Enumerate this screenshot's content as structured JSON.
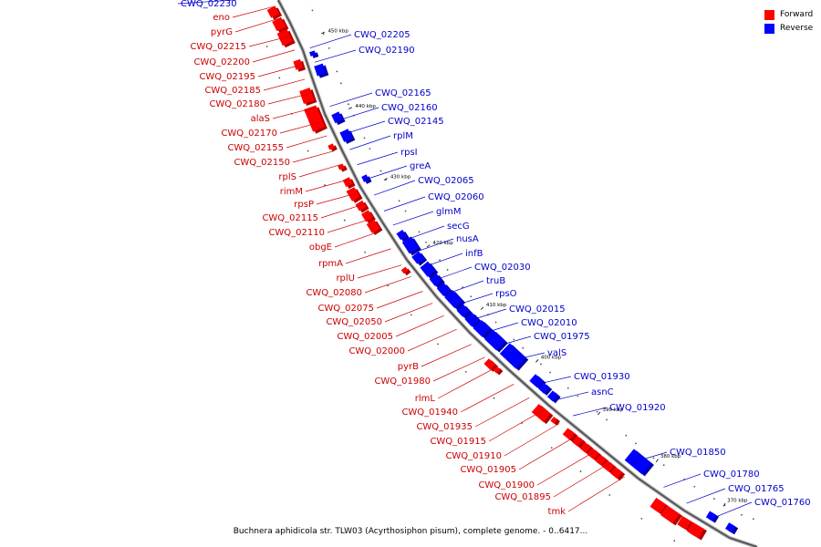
{
  "legend": {
    "forward_label": "Forward",
    "reverse_label": "Reverse",
    "forward_color": "#ff0000",
    "reverse_color": "#0000ff"
  },
  "caption": "Buchnera aphidicola str. TLW03 (Acyrthosiphon pisum), complete genome. - 0..6417...",
  "tick_labels": [
    "450 kbp",
    "440 kbp",
    "430 kbp",
    "420 kbp",
    "410 kbp",
    "400 kbp",
    "390 kbp",
    "380 kbp",
    "370 kbp"
  ],
  "forward_labels": [
    "eno",
    "pyrG",
    "CWQ_02215",
    "CWQ_02200",
    "CWQ_02195",
    "CWQ_02185",
    "CWQ_02180",
    "alaS",
    "CWQ_02170",
    "CWQ_02155",
    "CWQ_02150",
    "rplS",
    "rimM",
    "rpsP",
    "CWQ_02115",
    "CWQ_02110",
    "obgE",
    "rpmA",
    "rplU",
    "CWQ_02080",
    "CWQ_02075",
    "CWQ_02050",
    "CWQ_02005",
    "CWQ_02000",
    "pyrB",
    "CWQ_01980",
    "rlmL",
    "CWQ_01940",
    "CWQ_01935",
    "CWQ_01915",
    "CWQ_01910",
    "CWQ_01905",
    "CWQ_01900",
    "CWQ_01895",
    "tmk"
  ],
  "reverse_labels": [
    "CWQ_02230",
    "CWQ_02205",
    "CWQ_02190",
    "CWQ_02165",
    "CWQ_02160",
    "CWQ_02145",
    "rplM",
    "rpsI",
    "greA",
    "CWQ_02065",
    "CWQ_02060",
    "glmM",
    "secG",
    "nusA",
    "infB",
    "CWQ_02030",
    "truB",
    "rpsO",
    "CWQ_02015",
    "CWQ_02010",
    "CWQ_01975",
    "valS",
    "CWQ_01930",
    "asnC",
    "CWQ_01920",
    "CWQ_01850",
    "CWQ_01780",
    "CWQ_01765",
    "CWQ_01760"
  ]
}
